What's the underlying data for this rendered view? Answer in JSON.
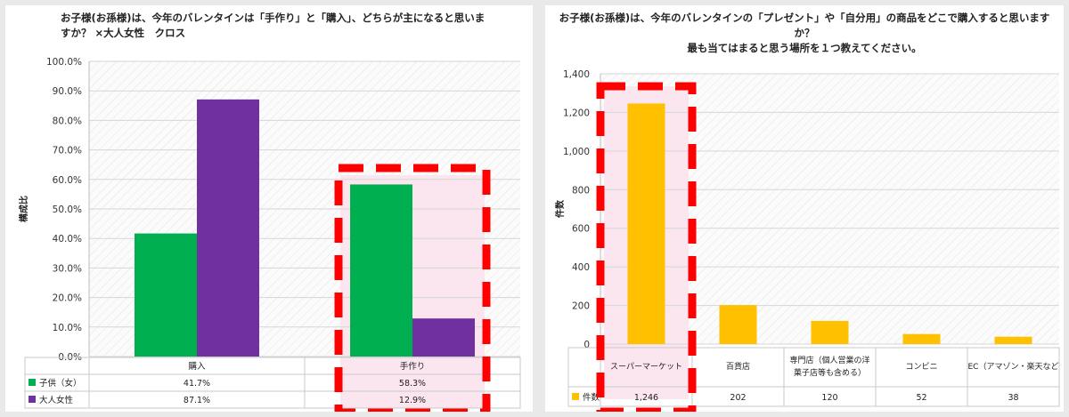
{
  "chart_data": [
    {
      "type": "bar",
      "title": "お子様(お孫様)は、今年のバレンタインは「手作り」と「購入」、どちらが主になると思いますか？ ×大人女性　クロス",
      "title_lines": [
        "お子様(お孫様)は、今年のバレンタインは「手作り」と「購入」、どちらが主になると思いま",
        "すか？ ×大人女性　クロス"
      ],
      "ylabel": "構成比",
      "xlabel": "",
      "ylim": [
        0,
        100
      ],
      "y_ticks": [
        "0.0%",
        "10.0%",
        "20.0%",
        "30.0%",
        "40.0%",
        "50.0%",
        "60.0%",
        "70.0%",
        "80.0%",
        "90.0%",
        "100.0%"
      ],
      "categories": [
        "購入",
        "手作り"
      ],
      "series": [
        {
          "name": "子供（女）",
          "values": [
            41.7,
            58.3
          ],
          "labels": [
            "41.7%",
            "58.3%"
          ],
          "color": "#00b050"
        },
        {
          "name": "大人女性",
          "values": [
            87.1,
            12.9
          ],
          "labels": [
            "87.1%",
            "12.9%"
          ],
          "color": "#7030a0"
        }
      ],
      "highlight_category": "手作り",
      "highlight_color": "#ff0000",
      "grid": true,
      "legend": "data-table"
    },
    {
      "type": "bar",
      "title": "お子様(お孫様)は、今年のバレンタインの「プレゼント」や「自分用」の商品をどこで購入すると思いますか？ 最も当てはまると思う場所を１つ教えてください。",
      "title_lines": [
        "お子様(お孫様)は、今年のバレンタインの「プレゼント」や「自分用」の商品をどこで購入すると思いますか？",
        "最も当てはまると思う場所を１つ教えてください。"
      ],
      "ylabel": "件数",
      "xlabel": "",
      "ylim": [
        0,
        1400
      ],
      "y_ticks": [
        "0",
        "200",
        "400",
        "600",
        "800",
        "1,000",
        "1,200",
        "1,400"
      ],
      "categories": [
        "スーパーマーケット",
        "百貨店",
        "専門店（個人営業の洋菓子店等も含める）",
        "コンビニ",
        "EC（アマゾン・楽天など"
      ],
      "category_lines": [
        [
          "スーパーマーケット"
        ],
        [
          "百貨店"
        ],
        [
          "専門店（個人営業の洋",
          "菓子店等も含める）"
        ],
        [
          "コンビニ"
        ],
        [
          "EC（アマゾン・楽天など"
        ]
      ],
      "series": [
        {
          "name": "件数",
          "values": [
            1246,
            202,
            120,
            52,
            38
          ],
          "labels": [
            "1,246",
            "202",
            "120",
            "52",
            "38"
          ],
          "color": "#ffc000"
        }
      ],
      "highlight_category": "スーパーマーケット",
      "highlight_color": "#ff0000",
      "grid": true,
      "legend": "data-table"
    }
  ]
}
